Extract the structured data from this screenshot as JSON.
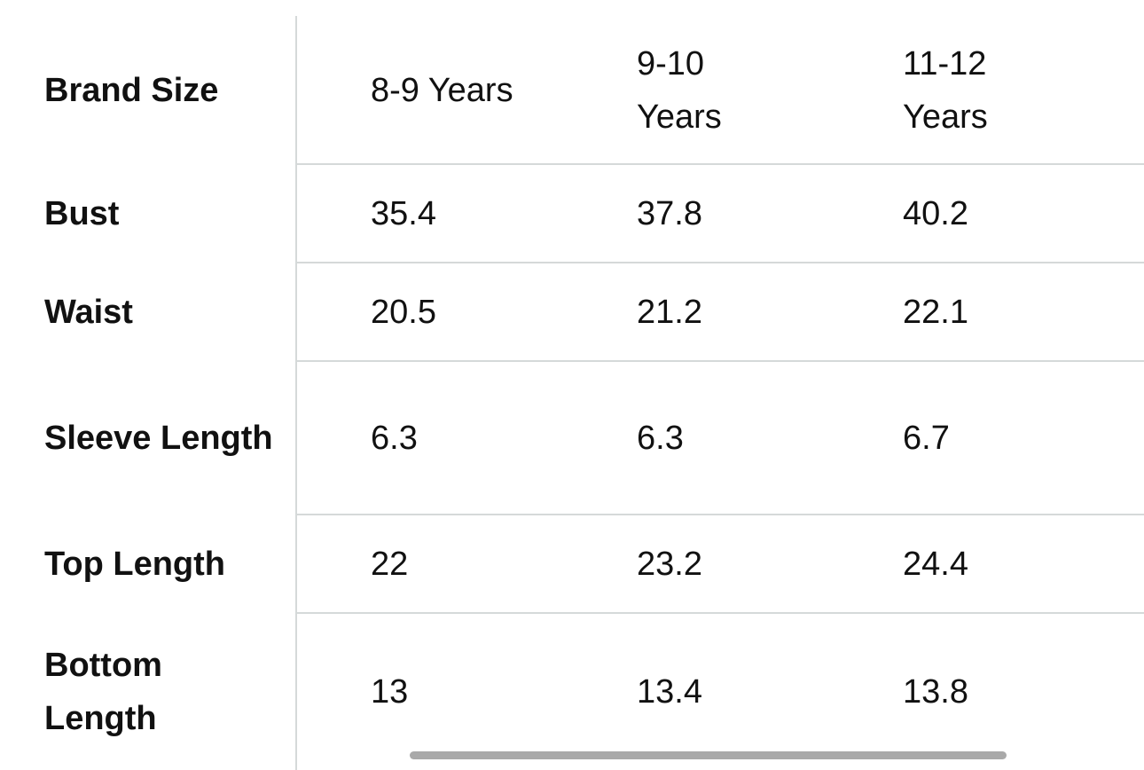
{
  "table": {
    "header": [
      "Brand Size",
      "8-9 Years",
      "9-10 Years",
      "11-12 Years"
    ],
    "rows": [
      [
        "Bust",
        35.4,
        37.8,
        40.2
      ],
      [
        "Waist",
        20.5,
        21.2,
        22.1
      ],
      [
        "Sleeve Length",
        6.3,
        6.3,
        6.7
      ],
      [
        "Top Length",
        22,
        23.2,
        24.4
      ],
      [
        "Bottom Length",
        13,
        13.4,
        13.8
      ]
    ]
  }
}
